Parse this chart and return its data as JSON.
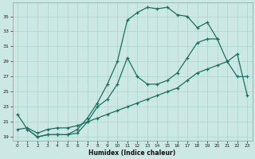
{
  "xlabel": "Humidex (Indice chaleur)",
  "xlim_min": -0.5,
  "xlim_max": 23.5,
  "ylim_min": 18.5,
  "ylim_max": 36.8,
  "yticks": [
    19,
    21,
    23,
    25,
    27,
    29,
    31,
    33,
    35
  ],
  "xticks": [
    0,
    1,
    2,
    3,
    4,
    5,
    6,
    7,
    8,
    9,
    10,
    11,
    12,
    13,
    14,
    15,
    16,
    17,
    18,
    19,
    20,
    21,
    22,
    23
  ],
  "bg_color": "#cce8e4",
  "grid_color": "#aad4ce",
  "line_color": "#1a7060",
  "line1_x": [
    0,
    1,
    2,
    3,
    4,
    5,
    6,
    7,
    8,
    9,
    10,
    11,
    12,
    13,
    14,
    15,
    16,
    17,
    18,
    19,
    20
  ],
  "line1_y": [
    22,
    20,
    19,
    19.3,
    19.3,
    19.3,
    20,
    21.5,
    23.5,
    26,
    29,
    34.5,
    35.5,
    36.2,
    36.0,
    36.2,
    35.2,
    35.0,
    33.5,
    34.2,
    32.0
  ],
  "line2_x": [
    1,
    2,
    3,
    4,
    5,
    6,
    7,
    8,
    9,
    10,
    11,
    12,
    13,
    14,
    15,
    16,
    17,
    18,
    19,
    20,
    21,
    22,
    23
  ],
  "line2_y": [
    20,
    19,
    19.3,
    19.3,
    19.3,
    19.5,
    21,
    23,
    24,
    26,
    29.5,
    27,
    26,
    26,
    26.5,
    27.5,
    29.5,
    31.5,
    32,
    32,
    29,
    27,
    27
  ],
  "line3_x": [
    0,
    1,
    2,
    3,
    4,
    5,
    6,
    7,
    8,
    9,
    10,
    11,
    12,
    13,
    14,
    15,
    16,
    17,
    18,
    19,
    20,
    21,
    22,
    23
  ],
  "line3_y": [
    20,
    20.2,
    19.5,
    20,
    20.2,
    20.2,
    20.5,
    21,
    21.5,
    22,
    22.5,
    23,
    23.5,
    24,
    24.5,
    25,
    25.5,
    26.5,
    27.5,
    28,
    28.5,
    29,
    30,
    24.5
  ]
}
